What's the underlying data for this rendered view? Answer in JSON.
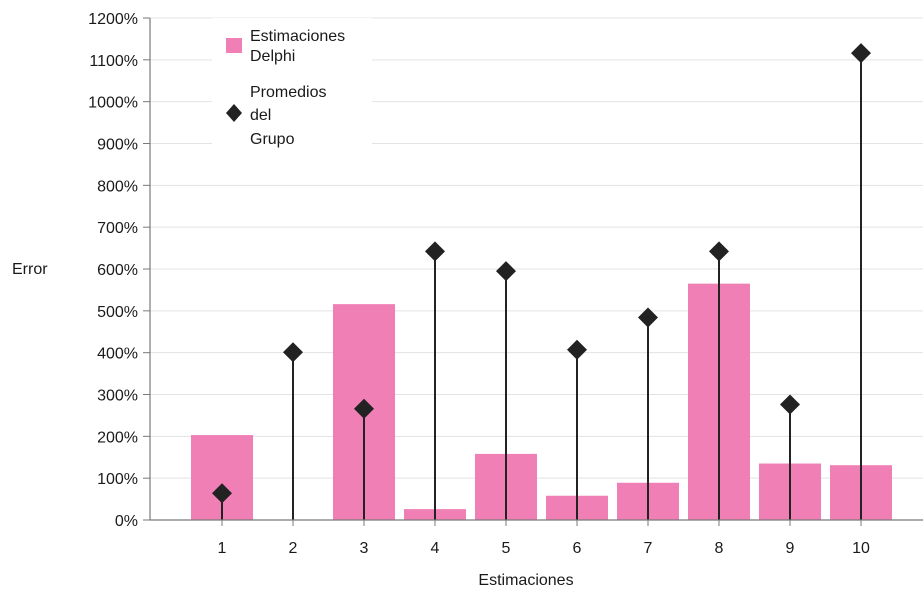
{
  "chart_data": {
    "type": "bar",
    "xlabel": "Estimaciones",
    "ylabel": "Error",
    "categories": [
      "1",
      "2",
      "3",
      "4",
      "5",
      "6",
      "7",
      "8",
      "9",
      "10"
    ],
    "ylim": [
      0,
      1200
    ],
    "y_ticks": [
      "0%",
      "100%",
      "200%",
      "300%",
      "400%",
      "500%",
      "600%",
      "700%",
      "800%",
      "900%",
      "1000%",
      "1100%",
      "1200%"
    ],
    "grid": true,
    "legend_position": "top-left",
    "series": [
      {
        "name": "Estimaciones Delphi",
        "legend_lines": [
          "Estimaciones",
          "Delphi"
        ],
        "kind": "bar",
        "color": "#f07fb5",
        "values": [
          203,
          0,
          516,
          26,
          158,
          58,
          89,
          565,
          135,
          131
        ]
      },
      {
        "name": "Promedios del Grupo",
        "legend_lines": [
          "Promedios",
          "del",
          "Grupo"
        ],
        "kind": "stem-diamond",
        "color": "#222222",
        "values": [
          64,
          401,
          266,
          642,
          595,
          407,
          484,
          642,
          276,
          1116
        ]
      }
    ]
  }
}
